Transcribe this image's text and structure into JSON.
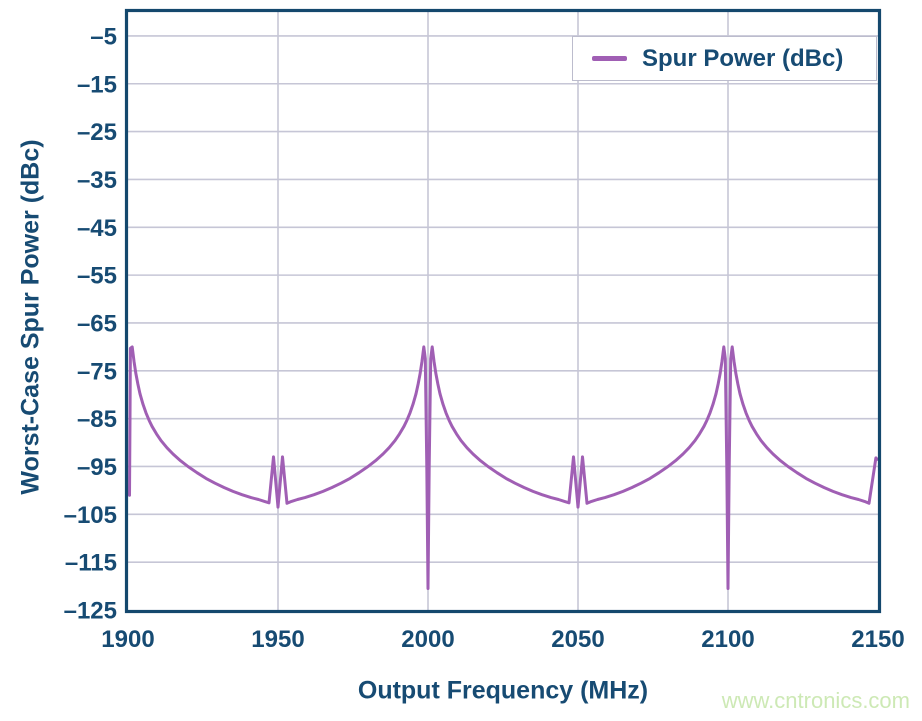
{
  "colors": {
    "navy": "#174b73",
    "purple": "#a05fb4",
    "gridline": "#c6c6d6",
    "plot_border": "#14486d",
    "legend_border": "#bcbccd",
    "watermark_green": "#cde9b5"
  },
  "legend": {
    "label": "Spur Power (dBc)"
  },
  "watermark": {
    "text": "www.cntronics.com"
  },
  "chart_data": {
    "type": "line",
    "title": "",
    "xlabel": "Output Frequency (MHz)",
    "ylabel": "Worst-Case Spur Power (dBc)",
    "xlim": [
      1900,
      2150
    ],
    "ylim": [
      0,
      -125
    ],
    "xticks": [
      1900,
      1950,
      2000,
      2050,
      2100,
      2150
    ],
    "yticks": [
      -5,
      -15,
      -25,
      -35,
      -45,
      -55,
      -65,
      -75,
      -85,
      -95,
      -105,
      -115,
      -125
    ],
    "ytick_labels": [
      "–5",
      "–15",
      "–25",
      "–35",
      "–45",
      "–55",
      "–65",
      "–75",
      "–85",
      "–95",
      "–105",
      "–115",
      "–125"
    ],
    "grid": true,
    "legend_position": "top-right-inside",
    "series": [
      {
        "name": "Spur Power (dBc)",
        "color": "#a05fb4",
        "points": [
          [
            1900.5,
            -101
          ],
          [
            1900.65,
            -85
          ],
          [
            1900.8,
            -70.3
          ],
          [
            1901.4,
            -70
          ],
          [
            1902,
            -73
          ],
          [
            1902.6,
            -75.5
          ],
          [
            1903.3,
            -77.8
          ],
          [
            1904,
            -79.8
          ],
          [
            1905,
            -82
          ],
          [
            1906,
            -83.8
          ],
          [
            1907,
            -85.3
          ],
          [
            1908,
            -86.6
          ],
          [
            1909.5,
            -88.2
          ],
          [
            1911,
            -89.6
          ],
          [
            1913,
            -91.1
          ],
          [
            1915,
            -92.4
          ],
          [
            1917.5,
            -93.8
          ],
          [
            1920,
            -95
          ],
          [
            1923,
            -96.3
          ],
          [
            1926,
            -97.5
          ],
          [
            1929,
            -98.5
          ],
          [
            1932,
            -99.4
          ],
          [
            1935,
            -100.2
          ],
          [
            1938,
            -100.9
          ],
          [
            1941,
            -101.5
          ],
          [
            1943.5,
            -101.9
          ],
          [
            1945.5,
            -102.3
          ],
          [
            1947,
            -102.6
          ],
          [
            1948.5,
            -93
          ],
          [
            1950,
            -103.5
          ],
          [
            1951.5,
            -93
          ],
          [
            1953,
            -102.7
          ],
          [
            1954.5,
            -102.3
          ],
          [
            1956.5,
            -101.9
          ],
          [
            1959,
            -101.5
          ],
          [
            1962,
            -100.9
          ],
          [
            1965,
            -100.2
          ],
          [
            1968,
            -99.4
          ],
          [
            1971,
            -98.5
          ],
          [
            1974,
            -97.5
          ],
          [
            1977,
            -96.3
          ],
          [
            1980,
            -95
          ],
          [
            1982.5,
            -93.8
          ],
          [
            1985,
            -92.4
          ],
          [
            1987,
            -91.1
          ],
          [
            1989,
            -89.6
          ],
          [
            1990.5,
            -88.2
          ],
          [
            1992,
            -86.6
          ],
          [
            1993,
            -85.3
          ],
          [
            1994,
            -83.8
          ],
          [
            1995,
            -82
          ],
          [
            1996,
            -79.8
          ],
          [
            1996.7,
            -77.8
          ],
          [
            1997.4,
            -75.5
          ],
          [
            1998,
            -73
          ],
          [
            1998.6,
            -70
          ],
          [
            1999.1,
            -72.5
          ],
          [
            1999.6,
            -95
          ],
          [
            2000,
            -120.5
          ],
          [
            2000.4,
            -95
          ],
          [
            2000.9,
            -72.5
          ],
          [
            2001.4,
            -70
          ],
          [
            2002,
            -73
          ],
          [
            2002.6,
            -75.5
          ],
          [
            2003.3,
            -77.8
          ],
          [
            2004,
            -79.8
          ],
          [
            2005,
            -82
          ],
          [
            2006,
            -83.8
          ],
          [
            2007,
            -85.3
          ],
          [
            2008,
            -86.6
          ],
          [
            2009.5,
            -88.2
          ],
          [
            2011,
            -89.6
          ],
          [
            2013,
            -91.1
          ],
          [
            2015,
            -92.4
          ],
          [
            2017.5,
            -93.8
          ],
          [
            2020,
            -95
          ],
          [
            2023,
            -96.3
          ],
          [
            2026,
            -97.5
          ],
          [
            2029,
            -98.5
          ],
          [
            2032,
            -99.4
          ],
          [
            2035,
            -100.2
          ],
          [
            2038,
            -100.9
          ],
          [
            2041,
            -101.5
          ],
          [
            2043.5,
            -101.9
          ],
          [
            2045.5,
            -102.3
          ],
          [
            2047,
            -102.6
          ],
          [
            2048.5,
            -93
          ],
          [
            2050,
            -103.5
          ],
          [
            2051.5,
            -93
          ],
          [
            2053,
            -102.7
          ],
          [
            2054.5,
            -102.3
          ],
          [
            2056.5,
            -101.9
          ],
          [
            2059,
            -101.5
          ],
          [
            2062,
            -100.9
          ],
          [
            2065,
            -100.2
          ],
          [
            2068,
            -99.4
          ],
          [
            2071,
            -98.5
          ],
          [
            2074,
            -97.5
          ],
          [
            2077,
            -96.3
          ],
          [
            2080,
            -95
          ],
          [
            2082.5,
            -93.8
          ],
          [
            2085,
            -92.4
          ],
          [
            2087,
            -91.1
          ],
          [
            2089,
            -89.6
          ],
          [
            2090.5,
            -88.2
          ],
          [
            2092,
            -86.6
          ],
          [
            2093,
            -85.3
          ],
          [
            2094,
            -83.8
          ],
          [
            2095,
            -82
          ],
          [
            2096,
            -79.8
          ],
          [
            2096.7,
            -77.8
          ],
          [
            2097.4,
            -75.5
          ],
          [
            2098,
            -73
          ],
          [
            2098.6,
            -70
          ],
          [
            2099.1,
            -72.5
          ],
          [
            2099.6,
            -95
          ],
          [
            2100,
            -120.5
          ],
          [
            2100.4,
            -95
          ],
          [
            2100.9,
            -72.5
          ],
          [
            2101.4,
            -70
          ],
          [
            2102,
            -73
          ],
          [
            2102.6,
            -75.5
          ],
          [
            2103.3,
            -77.8
          ],
          [
            2104,
            -79.8
          ],
          [
            2105,
            -82
          ],
          [
            2106,
            -83.8
          ],
          [
            2107,
            -85.3
          ],
          [
            2108,
            -86.6
          ],
          [
            2109.5,
            -88.2
          ],
          [
            2111,
            -89.6
          ],
          [
            2113,
            -91.1
          ],
          [
            2115,
            -92.4
          ],
          [
            2117.5,
            -93.8
          ],
          [
            2120,
            -95
          ],
          [
            2123,
            -96.3
          ],
          [
            2126,
            -97.5
          ],
          [
            2129,
            -98.5
          ],
          [
            2132,
            -99.4
          ],
          [
            2135,
            -100.2
          ],
          [
            2138,
            -100.9
          ],
          [
            2141,
            -101.5
          ],
          [
            2143.5,
            -101.9
          ],
          [
            2145.5,
            -102.3
          ],
          [
            2147,
            -102.7
          ],
          [
            2149.3,
            -93.2
          ],
          [
            2149.7,
            -93.5
          ]
        ]
      }
    ]
  }
}
